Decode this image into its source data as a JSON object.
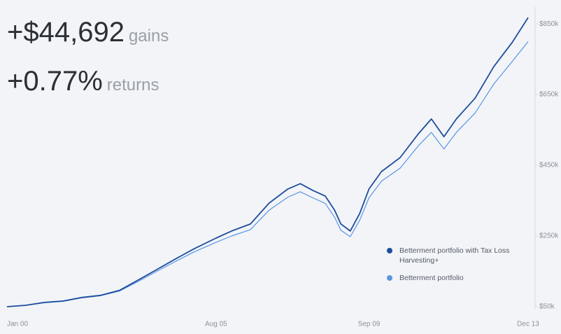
{
  "stats": [
    {
      "value": "+$44,692",
      "label": "gains"
    },
    {
      "value": "+0.77%",
      "label": "returns"
    }
  ],
  "chart_data": {
    "type": "line",
    "x": [
      "Jan 00",
      "Jul 00",
      "Jan 01",
      "Jul 01",
      "Jan 02",
      "Jul 02",
      "Jan 03",
      "Jul 03",
      "Jan 04",
      "Jul 04",
      "Jan 05",
      "Aug 05",
      "Jan 06",
      "Jul 06",
      "Jan 07",
      "Jul 07",
      "Nov 07",
      "Mar 08",
      "Jul 08",
      "Oct 08",
      "Dec 08",
      "Mar 09",
      "Jun 09",
      "Sep 09",
      "Jan 10",
      "Jul 10",
      "Jan 11",
      "May 11",
      "Sep 11",
      "Jan 12",
      "Jul 12",
      "Jan 13",
      "Jul 13",
      "Dec 13"
    ],
    "series": [
      {
        "name": "Betterment portfolio with Tax Loss Harvesting+",
        "color": "#1f4e9c",
        "values": [
          50000,
          54000,
          62000,
          66000,
          76000,
          82000,
          96000,
          125000,
          155000,
          185000,
          214000,
          244000,
          264000,
          284000,
          343000,
          383000,
          398000,
          379000,
          363000,
          323000,
          284000,
          264000,
          313000,
          383000,
          432000,
          472000,
          541000,
          581000,
          531000,
          581000,
          640000,
          729000,
          799000,
          868000
        ]
      },
      {
        "name": "Betterment portfolio",
        "color": "#5a95e3",
        "values": [
          50000,
          54000,
          61000,
          65000,
          75000,
          81000,
          94000,
          121000,
          150000,
          178000,
          205000,
          232000,
          250000,
          268000,
          323000,
          360000,
          375000,
          358000,
          342000,
          303000,
          266000,
          248000,
          294000,
          358000,
          405000,
          442000,
          507000,
          543000,
          496000,
          543000,
          598000,
          680000,
          745000,
          800000
        ]
      }
    ],
    "xlim": [
      "Jan 00",
      "Dec 13"
    ],
    "xticks": [
      "Jan 00",
      "Aug 05",
      "Sep 09",
      "Dec 13"
    ],
    "ylim": [
      44000,
      882000
    ],
    "yticks": [
      {
        "value": 50000,
        "label": "$50k"
      },
      {
        "value": 250000,
        "label": "$250k"
      },
      {
        "value": 450000,
        "label": "$450k"
      },
      {
        "value": 650000,
        "label": "$650k"
      },
      {
        "value": 850000,
        "label": "$850k"
      }
    ],
    "grid": false
  }
}
